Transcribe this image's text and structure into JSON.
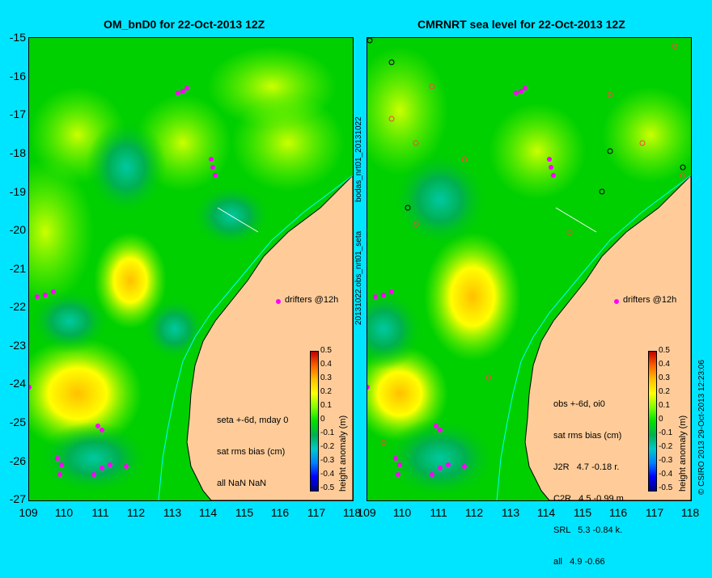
{
  "left_panel": {
    "title": "OM_bnD0 for 22-Oct-2013 12Z",
    "drifters_label": "drifters @12h",
    "info_lines": [
      "seta +-6d, mday 0",
      "sat rms bias (cm)",
      "all NaN NaN"
    ]
  },
  "right_panel": {
    "title": "CMRNRT sea level  for 22-Oct-2013 12Z",
    "drifters_label": "drifters @12h",
    "info_lines": [
      "obs +-6d, oi0",
      "sat rms bias (cm)",
      "J2R   4.7 -0.18 r.",
      "C2R   4.5 -0.99 m.",
      "SRL   5.3 -0.84 k.",
      "all   4.9 -0.66"
    ]
  },
  "axes": {
    "y_ticks": [
      "-15",
      "-16",
      "-17",
      "-18",
      "-19",
      "-20",
      "-21",
      "-22",
      "-23",
      "-24",
      "-25",
      "-26",
      "-27"
    ],
    "x_ticks": [
      "109",
      "110",
      "111",
      "112",
      "113",
      "114",
      "115",
      "116",
      "117",
      "118"
    ]
  },
  "colorbar": {
    "label": "height anomaly (m)",
    "ticks": [
      "0.5",
      "0.4",
      "0.3",
      "0.2",
      "0.1",
      "0",
      "-0.1",
      "-0.2",
      "-0.3",
      "-0.4",
      "-0.5"
    ],
    "colors": [
      "#00007f",
      "#0000ff",
      "#0080ff",
      "#00c8c8",
      "#00b050",
      "#00e000",
      "#80ff00",
      "#ffff00",
      "#ffc000",
      "#ff6000",
      "#c00000"
    ]
  },
  "side_labels": {
    "middle_top": "bodas_nrt01_20131022",
    "middle_bottom": "20131022.obs_nrt01_seta",
    "right_edge": "© CSIRO 2013   29-Oct-2013 12:23:06"
  },
  "colors": {
    "background": "#00e5ff",
    "land": "#ffcc99",
    "drifter": "#ff00ff",
    "coast_river": "#00ffff"
  }
}
